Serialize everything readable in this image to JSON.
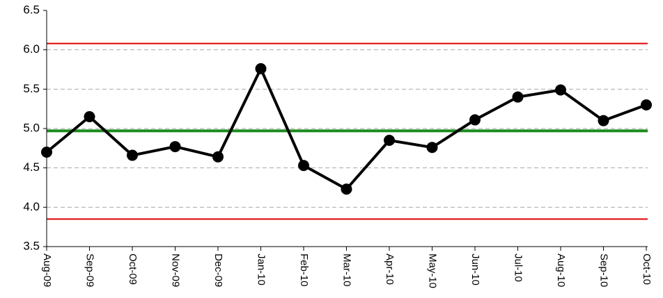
{
  "chart_data": {
    "type": "line",
    "categories": [
      "Aug-09",
      "Sep-09",
      "Oct-09",
      "Nov-09",
      "Dec-09",
      "Jan-10",
      "Feb-10",
      "Mar-10",
      "Apr-10",
      "May-10",
      "Jun-10",
      "Jul-10",
      "Aug-10",
      "Sep-10",
      "Oct-10"
    ],
    "series": [
      {
        "color": "#000000",
        "values": [
          4.7,
          5.15,
          4.66,
          4.77,
          4.64,
          5.76,
          4.53,
          4.23,
          4.85,
          4.76,
          5.11,
          5.4,
          5.49,
          5.1,
          5.3
        ]
      }
    ],
    "reference_lines": [
      {
        "value": 6.08,
        "color": "#e00000"
      },
      {
        "value": 4.97,
        "color": "#1a8a1a"
      },
      {
        "value": 3.85,
        "color": "#e00000"
      }
    ],
    "ylim": [
      3.5,
      6.5
    ],
    "yticks": [
      3.5,
      {
        "value": 4.0,
        "label": "4.0"
      },
      4.5,
      {
        "value": 5.0,
        "label": "5.0"
      },
      5.5,
      {
        "value": 6.0,
        "label": "6.0"
      },
      6.5
    ],
    "grid": true
  }
}
